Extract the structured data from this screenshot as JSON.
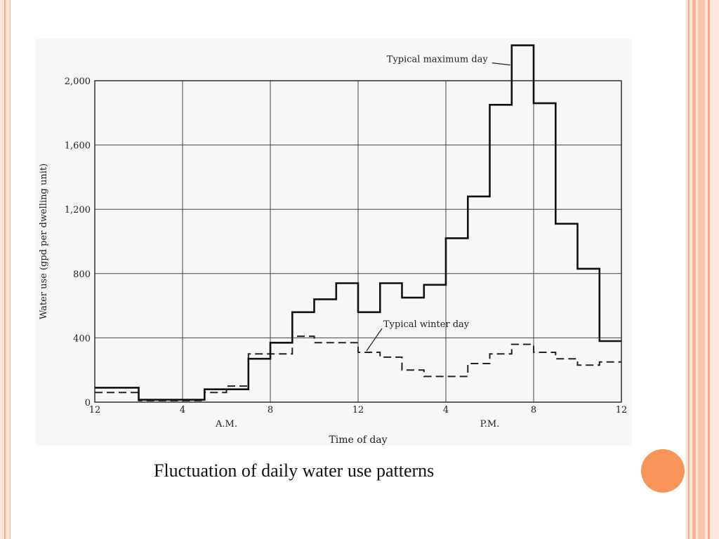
{
  "slide": {
    "caption": "Fluctuation of daily water use patterns",
    "accent_color": "#f8955a",
    "border_color": "#f5a988"
  },
  "chart_data": {
    "type": "line",
    "step": true,
    "xlabel": "Time of day",
    "ylabel": "Water use (gpd per dwelling unit)",
    "x_ticks": [
      "12",
      "4",
      "8",
      "12",
      "4",
      "8",
      "12"
    ],
    "x_period_labels": [
      "A.M.",
      "P.M."
    ],
    "y_ticks": [
      "0",
      "400",
      "800",
      "1,200",
      "1,600",
      "2,000"
    ],
    "xlim": [
      0,
      24
    ],
    "ylim": [
      0,
      2000
    ],
    "grid": true,
    "x_hours": [
      0,
      1,
      2,
      3,
      4,
      5,
      6,
      7,
      8,
      9,
      10,
      11,
      12,
      13,
      14,
      15,
      16,
      17,
      18,
      19,
      20,
      21,
      22,
      23
    ],
    "series": [
      {
        "name": "Typical maximum day",
        "style": "solid",
        "values": [
          90,
          90,
          15,
          15,
          15,
          80,
          80,
          270,
          370,
          560,
          640,
          740,
          560,
          740,
          650,
          730,
          1020,
          1280,
          1850,
          2220,
          1860,
          1110,
          830,
          380
        ]
      },
      {
        "name": "Typical winter day",
        "style": "dashed",
        "values": [
          60,
          60,
          10,
          10,
          10,
          60,
          100,
          300,
          300,
          410,
          370,
          370,
          310,
          280,
          200,
          160,
          160,
          240,
          300,
          360,
          310,
          270,
          230,
          250
        ]
      }
    ]
  }
}
